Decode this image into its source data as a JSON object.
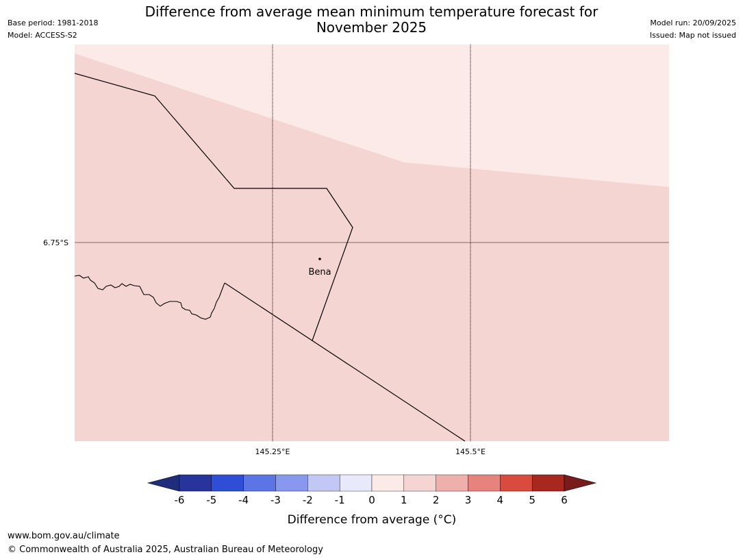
{
  "header": {
    "title_line1": "Difference from average mean minimum temperature forecast for",
    "title_line2": "November 2025",
    "base_period": "Base period: 1981-2018",
    "model": "Model: ACCESS-S2",
    "model_run": "Model run: 20/09/2025",
    "issued": "Issued: Map not issued"
  },
  "map": {
    "place_label": "Bena",
    "lat_label": "6.75°S",
    "lon_labels": [
      "145.25°E",
      "145.5°E"
    ],
    "colors": {
      "region_high": "#fbeae8",
      "region_main": "#f5d5d2",
      "gridline": "#000000",
      "boundary": "#000000"
    }
  },
  "colorbar": {
    "label": "Difference from average (°C)",
    "ticks": [
      "-6",
      "-5",
      "-4",
      "-3",
      "-2",
      "-1",
      "0",
      "1",
      "2",
      "3",
      "4",
      "5",
      "6"
    ],
    "colors": [
      "#27349c",
      "#2e4ed8",
      "#5b74e6",
      "#8898ee",
      "#c1c8f5",
      "#e8eafb",
      "#fbeae8",
      "#f5d5d2",
      "#edb0ab",
      "#e5837c",
      "#d94b3d",
      "#a82820"
    ],
    "under_color": "#1f2d7c",
    "over_color": "#7a1b1b"
  },
  "footer": {
    "url": "www.bom.gov.au/climate",
    "copyright": "© Commonwealth of Australia 2025, Australian Bureau of Meteorology"
  }
}
